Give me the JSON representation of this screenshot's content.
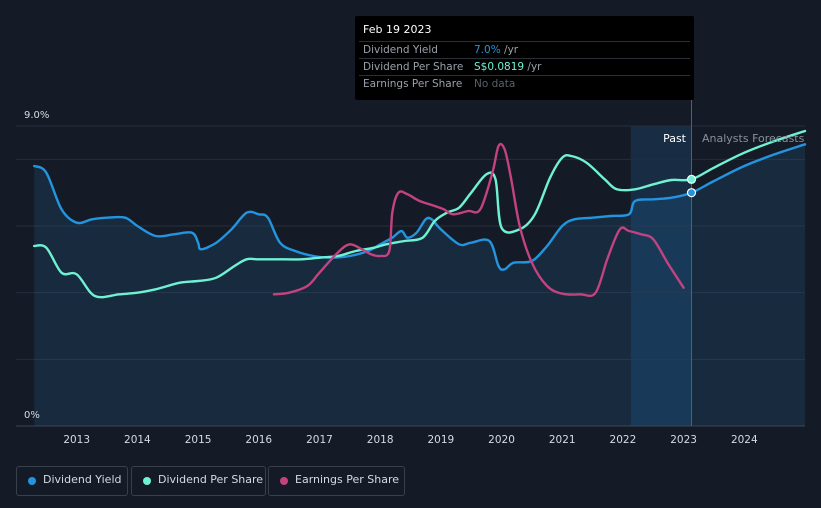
{
  "tooltip": {
    "date": "Feb 19 2023",
    "rows": [
      {
        "label": "Dividend Yield",
        "value": "7.0%",
        "unit": " /yr",
        "color": "#2394df"
      },
      {
        "label": "Dividend Per Share",
        "value": "S$0.0819",
        "unit": " /yr",
        "color": "#6ff2d4"
      },
      {
        "label": "Earnings Per Share",
        "value": "No data",
        "unit": "",
        "color": "#5a606a"
      }
    ]
  },
  "labels": {
    "past": "Past",
    "forecast": "Analysts Forecasts"
  },
  "legend": [
    {
      "label": "Dividend Yield",
      "color": "#2394df"
    },
    {
      "label": "Dividend Per Share",
      "color": "#6ff2d4"
    },
    {
      "label": "Earnings Per Share",
      "color": "#c2437f"
    }
  ],
  "chart_data": {
    "type": "line",
    "y_tick_labels": [
      "9.0%",
      "0%"
    ],
    "ylim": [
      0,
      9.0
    ],
    "xlim": [
      2012.3,
      2025.0
    ],
    "x_ticks": [
      "2013",
      "2014",
      "2015",
      "2016",
      "2017",
      "2018",
      "2019",
      "2020",
      "2021",
      "2022",
      "2023",
      "2024"
    ],
    "past_region": [
      2022.13,
      2023.13
    ],
    "highlight_x": 2023.13,
    "grid": true,
    "legend_position": "bottom",
    "series": [
      {
        "name": "Dividend Yield",
        "color": "#2394df",
        "fill": true,
        "points": [
          [
            2012.3,
            7.8
          ],
          [
            2012.5,
            7.6
          ],
          [
            2012.75,
            6.5
          ],
          [
            2013.0,
            6.1
          ],
          [
            2013.25,
            6.2
          ],
          [
            2013.5,
            6.25
          ],
          [
            2013.8,
            6.25
          ],
          [
            2014.0,
            6.0
          ],
          [
            2014.3,
            5.7
          ],
          [
            2014.6,
            5.75
          ],
          [
            2014.9,
            5.8
          ],
          [
            2015.0,
            5.5
          ],
          [
            2015.05,
            5.3
          ],
          [
            2015.3,
            5.5
          ],
          [
            2015.55,
            5.9
          ],
          [
            2015.8,
            6.4
          ],
          [
            2016.0,
            6.35
          ],
          [
            2016.15,
            6.25
          ],
          [
            2016.35,
            5.5
          ],
          [
            2016.6,
            5.25
          ],
          [
            2016.9,
            5.1
          ],
          [
            2017.2,
            5.05
          ],
          [
            2017.5,
            5.1
          ],
          [
            2017.8,
            5.25
          ],
          [
            2018.0,
            5.45
          ],
          [
            2018.2,
            5.65
          ],
          [
            2018.35,
            5.85
          ],
          [
            2018.45,
            5.65
          ],
          [
            2018.6,
            5.8
          ],
          [
            2018.75,
            6.2
          ],
          [
            2018.85,
            6.2
          ],
          [
            2019.0,
            5.9
          ],
          [
            2019.3,
            5.45
          ],
          [
            2019.5,
            5.5
          ],
          [
            2019.8,
            5.55
          ],
          [
            2019.95,
            4.8
          ],
          [
            2020.05,
            4.7
          ],
          [
            2020.2,
            4.9
          ],
          [
            2020.5,
            4.95
          ],
          [
            2020.75,
            5.4
          ],
          [
            2021.0,
            6.0
          ],
          [
            2021.2,
            6.2
          ],
          [
            2021.5,
            6.25
          ],
          [
            2021.8,
            6.3
          ],
          [
            2022.1,
            6.35
          ],
          [
            2022.2,
            6.75
          ],
          [
            2022.5,
            6.8
          ],
          [
            2022.8,
            6.85
          ],
          [
            2023.13,
            7.0
          ],
          [
            2023.5,
            7.35
          ],
          [
            2024.0,
            7.8
          ],
          [
            2024.5,
            8.15
          ],
          [
            2025.0,
            8.45
          ]
        ]
      },
      {
        "name": "Dividend Per Share",
        "color": "#6ff2d4",
        "fill": false,
        "points": [
          [
            2012.3,
            5.4
          ],
          [
            2012.5,
            5.35
          ],
          [
            2012.75,
            4.6
          ],
          [
            2013.0,
            4.55
          ],
          [
            2013.3,
            3.9
          ],
          [
            2013.7,
            3.95
          ],
          [
            2014.0,
            4.0
          ],
          [
            2014.3,
            4.1
          ],
          [
            2014.7,
            4.3
          ],
          [
            2015.0,
            4.35
          ],
          [
            2015.3,
            4.45
          ],
          [
            2015.6,
            4.8
          ],
          [
            2015.8,
            5.0
          ],
          [
            2016.0,
            5.0
          ],
          [
            2016.3,
            5.0
          ],
          [
            2016.7,
            5.0
          ],
          [
            2017.0,
            5.05
          ],
          [
            2017.3,
            5.1
          ],
          [
            2017.6,
            5.25
          ],
          [
            2017.9,
            5.35
          ],
          [
            2018.1,
            5.45
          ],
          [
            2018.4,
            5.55
          ],
          [
            2018.7,
            5.65
          ],
          [
            2018.9,
            6.15
          ],
          [
            2019.1,
            6.4
          ],
          [
            2019.3,
            6.55
          ],
          [
            2019.5,
            7.0
          ],
          [
            2019.75,
            7.55
          ],
          [
            2019.9,
            7.4
          ],
          [
            2020.0,
            5.95
          ],
          [
            2020.3,
            5.9
          ],
          [
            2020.55,
            6.35
          ],
          [
            2020.8,
            7.45
          ],
          [
            2021.0,
            8.05
          ],
          [
            2021.15,
            8.1
          ],
          [
            2021.4,
            7.9
          ],
          [
            2021.7,
            7.4
          ],
          [
            2021.9,
            7.1
          ],
          [
            2022.2,
            7.1
          ],
          [
            2022.5,
            7.25
          ],
          [
            2022.8,
            7.38
          ],
          [
            2023.13,
            7.4
          ],
          [
            2023.5,
            7.75
          ],
          [
            2024.0,
            8.2
          ],
          [
            2024.5,
            8.55
          ],
          [
            2025.0,
            8.85
          ]
        ]
      },
      {
        "name": "Earnings Per Share",
        "color": "#c2437f",
        "fill": false,
        "points": [
          [
            2016.25,
            3.95
          ],
          [
            2016.5,
            4.0
          ],
          [
            2016.8,
            4.2
          ],
          [
            2017.0,
            4.6
          ],
          [
            2017.3,
            5.2
          ],
          [
            2017.5,
            5.45
          ],
          [
            2017.7,
            5.3
          ],
          [
            2017.85,
            5.15
          ],
          [
            2018.0,
            5.1
          ],
          [
            2018.15,
            5.25
          ],
          [
            2018.2,
            6.4
          ],
          [
            2018.3,
            7.0
          ],
          [
            2018.45,
            6.95
          ],
          [
            2018.65,
            6.75
          ],
          [
            2018.9,
            6.6
          ],
          [
            2019.05,
            6.5
          ],
          [
            2019.2,
            6.35
          ],
          [
            2019.45,
            6.45
          ],
          [
            2019.65,
            6.5
          ],
          [
            2019.85,
            7.6
          ],
          [
            2019.95,
            8.4
          ],
          [
            2020.05,
            8.3
          ],
          [
            2020.15,
            7.5
          ],
          [
            2020.3,
            6.0
          ],
          [
            2020.5,
            4.9
          ],
          [
            2020.75,
            4.2
          ],
          [
            2021.0,
            3.97
          ],
          [
            2021.3,
            3.95
          ],
          [
            2021.55,
            4.0
          ],
          [
            2021.75,
            5.05
          ],
          [
            2021.95,
            5.9
          ],
          [
            2022.1,
            5.85
          ],
          [
            2022.3,
            5.75
          ],
          [
            2022.5,
            5.6
          ],
          [
            2022.75,
            4.85
          ],
          [
            2023.0,
            4.15
          ]
        ]
      }
    ]
  }
}
